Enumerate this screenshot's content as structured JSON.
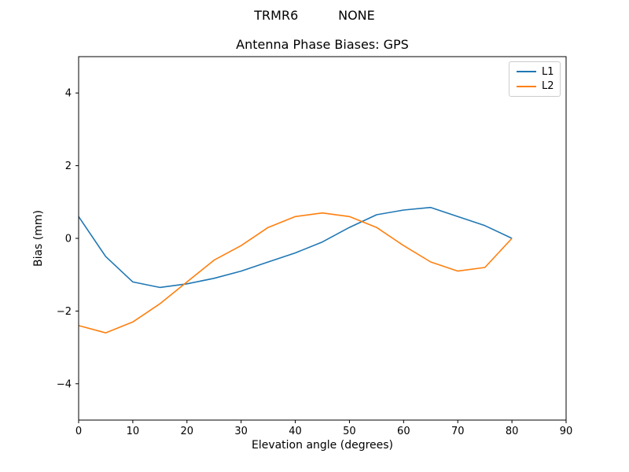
{
  "chart_data": {
    "type": "line",
    "suptitle": "TRMR6          NONE",
    "title": "Antenna Phase Biases: GPS",
    "xlabel": "Elevation angle (degrees)",
    "ylabel": "Bias (mm)",
    "xlim": [
      0,
      90
    ],
    "ylim": [
      -5,
      5
    ],
    "x_ticks": [
      0,
      10,
      20,
      30,
      40,
      50,
      60,
      70,
      80,
      90
    ],
    "y_ticks": [
      -4,
      -2,
      0,
      2,
      4
    ],
    "grid": false,
    "legend_position": "upper right",
    "x": [
      0,
      5,
      10,
      15,
      20,
      25,
      30,
      35,
      40,
      45,
      50,
      55,
      60,
      65,
      70,
      75,
      80
    ],
    "series": [
      {
        "name": "L1",
        "color": "#1f77b4",
        "values": [
          0.6,
          -0.5,
          -1.2,
          -1.35,
          -1.25,
          -1.1,
          -0.9,
          -0.65,
          -0.4,
          -0.1,
          0.3,
          0.65,
          0.78,
          0.85,
          0.6,
          0.35,
          0.0
        ]
      },
      {
        "name": "L2",
        "color": "#ff7f0e",
        "values": [
          -2.4,
          -2.6,
          -2.3,
          -1.8,
          -1.2,
          -0.6,
          -0.2,
          0.3,
          0.6,
          0.7,
          0.6,
          0.3,
          -0.2,
          -0.65,
          -0.9,
          -0.8,
          0.0
        ]
      }
    ]
  }
}
